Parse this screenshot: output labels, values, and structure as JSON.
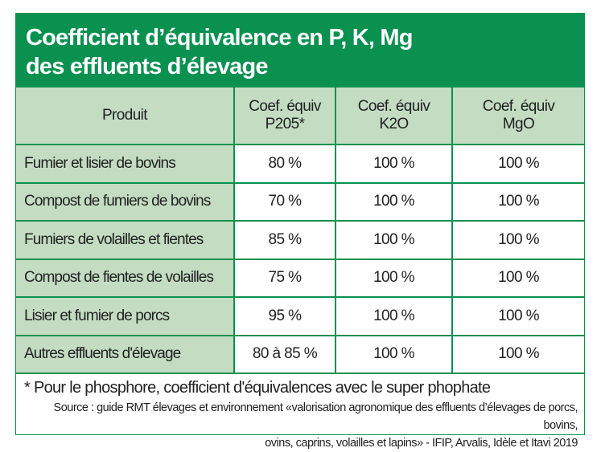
{
  "title": {
    "line1": "Coefficient d’équivalence en P, K, Mg",
    "line2": "des effluents d’élevage"
  },
  "table": {
    "headers": [
      {
        "line1": "Produit",
        "line2": ""
      },
      {
        "line1": "Coef. équiv",
        "line2": "P205*"
      },
      {
        "line1": "Coef. équiv",
        "line2": "K2O"
      },
      {
        "line1": "Coef. équiv",
        "line2": "MgO"
      }
    ],
    "rows": [
      [
        "Fumier et lisier de bovins",
        "80 %",
        "100 %",
        "100 %"
      ],
      [
        "Compost de fumiers de bovins",
        "70 %",
        "100 %",
        "100 %"
      ],
      [
        "Fumiers de volailles et fientes",
        "85 %",
        "100 %",
        "100 %"
      ],
      [
        "Compost de fientes de volailles",
        "75 %",
        "100 %",
        "100 %"
      ],
      [
        "Lisier et fumier de porcs",
        "95 %",
        "100 %",
        "100 %"
      ],
      [
        "Autres effluents d'élevage",
        "80 à 85 %",
        "100 %",
        "100 %"
      ]
    ]
  },
  "footer": {
    "note": "* Pour le phosphore, coefficient d'équivalences avec le super phophate",
    "source_line1": "Source : guide RMT élevages et environnement «valorisation agronomique des effluents d’élevages de porcs, bovins,",
    "source_line2": "ovins, caprins, volailles et lapins» - IFIP, Arvalis, Idèle et Itavi 2019"
  },
  "colors": {
    "brand_green": "#0a9150",
    "header_fill": "#c3dcc2"
  }
}
